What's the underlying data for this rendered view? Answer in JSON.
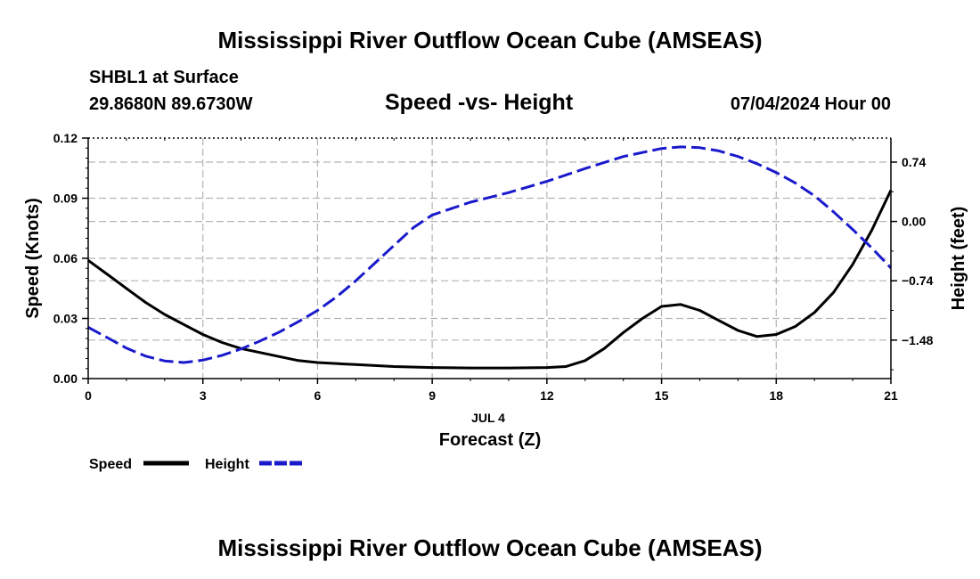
{
  "page": {
    "title": "Mississippi River Outflow Ocean Cube (AMSEAS)",
    "station": "SHBL1 at Surface",
    "coords": "29.8680N  89.6730W",
    "datetime": "07/04/2024 Hour 00",
    "footer_title": "Mississippi River Outflow Ocean Cube (AMSEAS)"
  },
  "chart_data": {
    "type": "line",
    "title": "Speed -vs- Height",
    "xlabel": "Forecast (Z)",
    "x_date_label": "JUL 4",
    "ylabel": "Speed (Knots)",
    "y2label": "Height (feet)",
    "xlim": [
      0,
      21
    ],
    "ylim": [
      0,
      0.12
    ],
    "y2lim": [
      -1.96,
      1.04
    ],
    "x_ticks": [
      0,
      3,
      6,
      9,
      12,
      15,
      18,
      21
    ],
    "y_ticks": [
      0,
      0.03,
      0.06,
      0.09,
      0.12
    ],
    "y_tick_labels": [
      "0.00",
      "0.03",
      "0.06",
      "0.09",
      "0.12"
    ],
    "y2_ticks": [
      -1.48,
      -0.74,
      0.0,
      0.74
    ],
    "y2_tick_labels": [
      "−1.48",
      "−0.74",
      "0.00",
      "0.74"
    ],
    "grid": true,
    "legend_position": "bottom-left",
    "series": [
      {
        "name": "Speed",
        "axis": "left",
        "color": "#000000",
        "dash": "solid",
        "x": [
          0,
          0.5,
          1,
          1.5,
          2,
          2.5,
          3,
          3.5,
          4,
          4.5,
          5,
          5.5,
          6,
          7,
          8,
          9,
          10,
          11,
          12,
          12.5,
          13,
          13.5,
          14,
          14.5,
          15,
          15.5,
          16,
          16.5,
          17,
          17.5,
          18,
          18.5,
          19,
          19.5,
          20,
          20.5,
          21
        ],
        "values": [
          0.059,
          0.052,
          0.045,
          0.038,
          0.032,
          0.027,
          0.022,
          0.018,
          0.015,
          0.013,
          0.011,
          0.009,
          0.008,
          0.007,
          0.006,
          0.0055,
          0.0053,
          0.0053,
          0.0055,
          0.006,
          0.009,
          0.015,
          0.023,
          0.03,
          0.036,
          0.037,
          0.034,
          0.029,
          0.024,
          0.021,
          0.022,
          0.026,
          0.033,
          0.043,
          0.057,
          0.074,
          0.094
        ]
      },
      {
        "name": "Height",
        "axis": "right",
        "color": "#1a1acc",
        "dash": "dashed",
        "x": [
          0,
          0.5,
          1,
          1.5,
          2,
          2.5,
          3,
          3.5,
          4,
          4.5,
          5,
          5.5,
          6,
          6.5,
          7,
          7.5,
          8,
          8.5,
          9,
          10,
          11,
          12,
          13,
          14,
          15,
          15.5,
          16,
          16.5,
          17,
          17.5,
          18,
          18.5,
          19,
          19.5,
          20,
          20.5,
          21
        ],
        "values": [
          -1.32,
          -1.45,
          -1.58,
          -1.68,
          -1.74,
          -1.76,
          -1.73,
          -1.67,
          -1.59,
          -1.49,
          -1.38,
          -1.25,
          -1.11,
          -0.94,
          -0.74,
          -0.52,
          -0.3,
          -0.08,
          0.08,
          0.24,
          0.36,
          0.5,
          0.66,
          0.81,
          0.91,
          0.93,
          0.92,
          0.88,
          0.81,
          0.72,
          0.61,
          0.48,
          0.32,
          0.12,
          -0.1,
          -0.33,
          -0.58
        ]
      }
    ]
  }
}
